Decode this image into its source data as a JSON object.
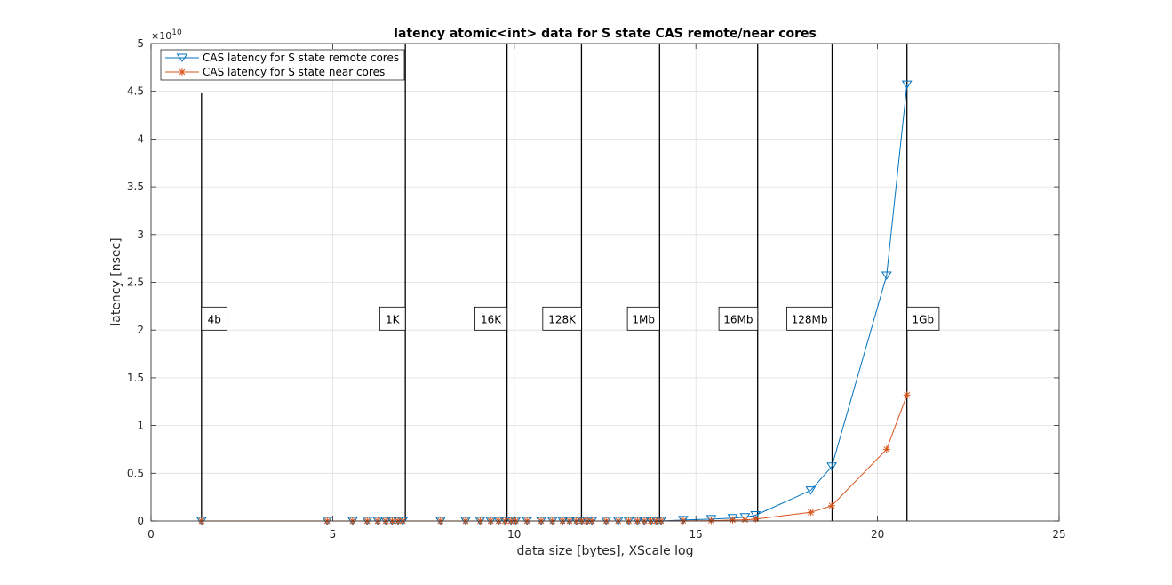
{
  "chart_data": {
    "type": "line",
    "title": "latency atomic<int> data for S state CAS remote/near cores",
    "xlabel": "data size [bytes], XScale log",
    "ylabel": "latency [nsec]",
    "xlim": [
      0,
      25
    ],
    "ylim": [
      0,
      5
    ],
    "y_exponent_label": "×10",
    "y_exponent_power": "10",
    "x_ticks": [
      0,
      5,
      10,
      15,
      20,
      25
    ],
    "x_tick_labels": [
      "0",
      "5",
      "10",
      "15",
      "20",
      "25"
    ],
    "y_ticks": [
      0,
      0.5,
      1,
      1.5,
      2,
      2.5,
      3,
      3.5,
      4,
      4.5,
      5
    ],
    "y_tick_labels": [
      "0",
      "0.5",
      "1",
      "1.5",
      "2",
      "2.5",
      "3",
      "3.5",
      "4",
      "4.5",
      "5"
    ],
    "grid": true,
    "legend_placement": "top-left",
    "x": [
      1.39,
      4.85,
      5.55,
      5.95,
      6.24,
      6.46,
      6.64,
      6.8,
      6.93,
      7.97,
      8.66,
      9.06,
      9.35,
      9.57,
      9.75,
      9.91,
      10.04,
      10.35,
      10.74,
      11.05,
      11.33,
      11.52,
      11.71,
      11.86,
      12.01,
      12.14,
      12.53,
      12.86,
      13.15,
      13.39,
      13.58,
      13.76,
      13.91,
      14.04,
      14.65,
      15.42,
      16.01,
      16.35,
      16.64,
      18.16,
      18.74,
      20.25,
      20.81
    ],
    "series": [
      {
        "name": "CAS latency for S state remote cores",
        "color": "#0072BD",
        "marker": "triangle-down",
        "values": [
          0,
          0,
          0,
          0,
          0,
          0,
          0,
          0,
          0,
          0,
          0,
          0,
          0,
          0,
          0,
          0,
          0,
          0,
          0,
          0,
          0,
          0,
          0,
          0,
          0,
          0,
          0,
          0,
          0,
          0,
          0,
          0,
          0,
          0,
          0.01,
          0.02,
          0.03,
          0.04,
          0.06,
          0.32,
          0.57,
          2.57,
          4.57
        ]
      },
      {
        "name": "CAS latency for S state near cores",
        "color": "#D95319",
        "marker": "asterisk",
        "values": [
          0,
          0,
          0,
          0,
          0,
          0,
          0,
          0,
          0,
          0,
          0,
          0,
          0,
          0,
          0,
          0,
          0,
          0,
          0,
          0,
          0,
          0,
          0,
          0,
          0,
          0,
          0,
          0,
          0,
          0,
          0,
          0,
          0,
          0,
          0.002,
          0.004,
          0.01,
          0.012,
          0.02,
          0.09,
          0.16,
          0.75,
          1.32
        ]
      }
    ],
    "annotations": [
      {
        "label": "4b",
        "x": 1.39,
        "ymax": 4.48
      },
      {
        "label": "1K",
        "x": 7.0,
        "ymax": 5
      },
      {
        "label": "16K",
        "x": 9.8,
        "ymax": 5
      },
      {
        "label": "128K",
        "x": 11.85,
        "ymax": 5
      },
      {
        "label": "1Mb",
        "x": 14.0,
        "ymax": 5
      },
      {
        "label": "16Mb",
        "x": 16.7,
        "ymax": 5
      },
      {
        "label": "128Mb",
        "x": 18.75,
        "ymax": 5
      },
      {
        "label": "1Gb",
        "x": 20.81,
        "ymax": 5
      }
    ],
    "annotation_label_y": 2.12
  }
}
